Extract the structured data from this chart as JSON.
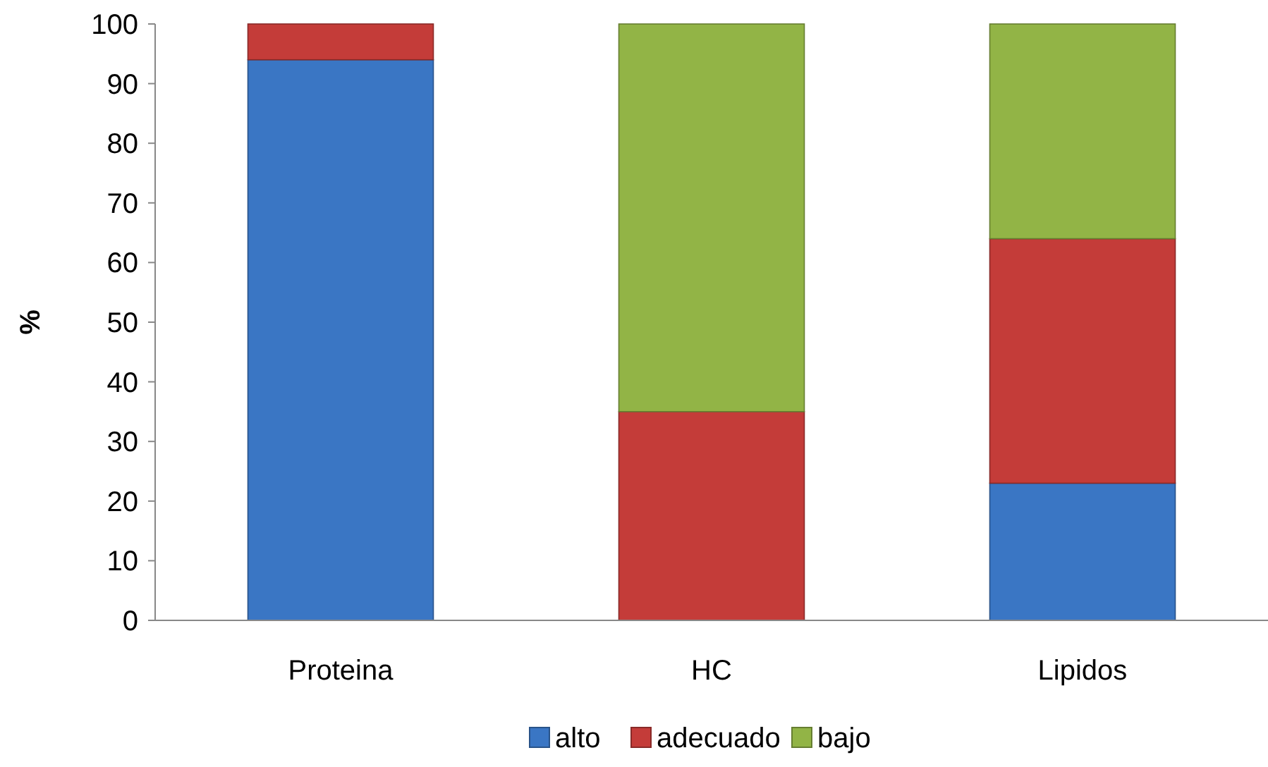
{
  "chart_data": {
    "type": "bar",
    "stacked": true,
    "ylabel": "%",
    "categories": [
      "Proteina",
      "HC",
      "Lipidos"
    ],
    "series": [
      {
        "name": "alto",
        "color": "#3a76c4",
        "values": [
          94,
          0,
          23
        ]
      },
      {
        "name": "adecuado",
        "color": "#c43c39",
        "values": [
          6,
          35,
          41
        ]
      },
      {
        "name": "bajo",
        "color": "#92b446",
        "values": [
          0,
          65,
          36
        ]
      }
    ],
    "ylim": [
      0,
      100
    ],
    "yticks": [
      0,
      10,
      20,
      30,
      40,
      50,
      60,
      70,
      80,
      90,
      100
    ],
    "grid": false,
    "legend": "bottom"
  }
}
